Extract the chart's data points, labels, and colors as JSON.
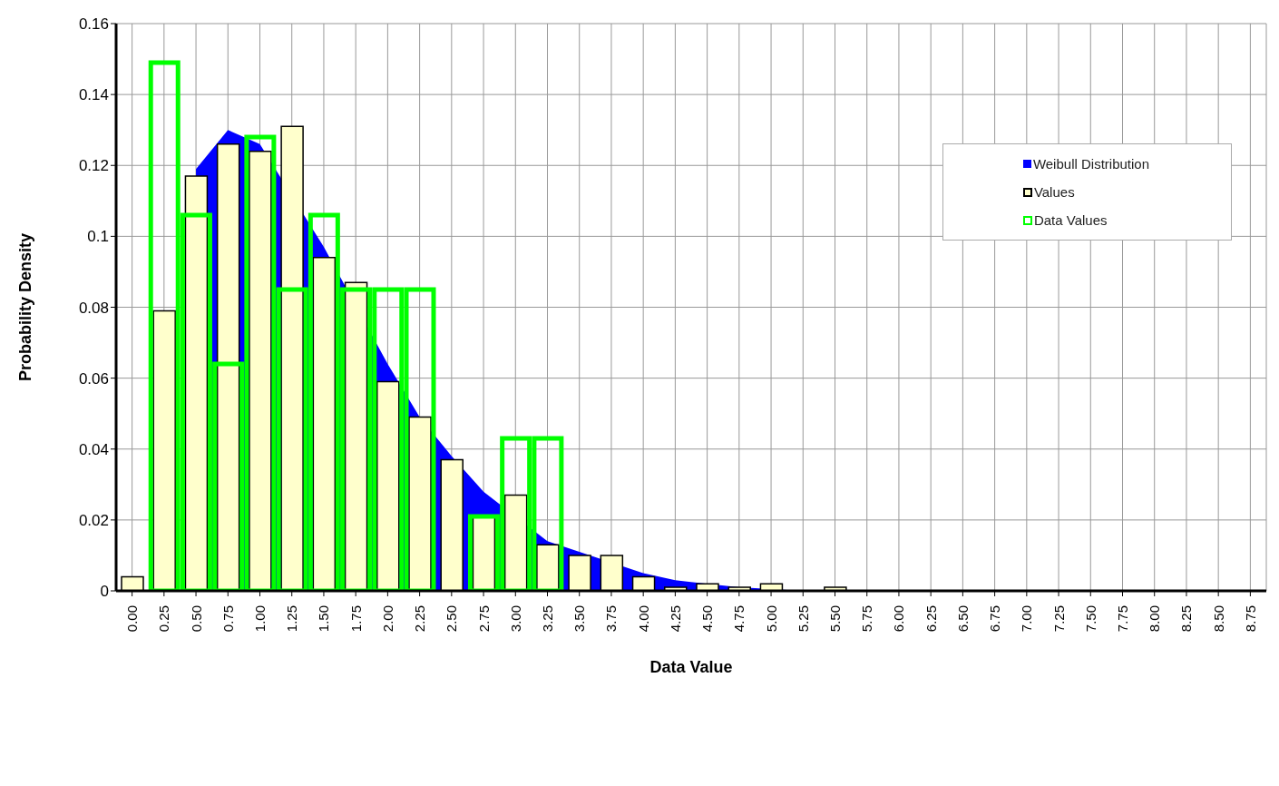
{
  "chart_data": {
    "type": "bar",
    "xlabel": "Data Value",
    "ylabel": "Probability Density",
    "categories": [
      "0.00",
      "0.25",
      "0.50",
      "0.75",
      "1.00",
      "1.25",
      "1.50",
      "1.75",
      "2.00",
      "2.25",
      "2.50",
      "2.75",
      "3.00",
      "3.25",
      "3.50",
      "3.75",
      "4.00",
      "4.25",
      "4.50",
      "4.75",
      "5.00",
      "5.25",
      "5.50",
      "5.75",
      "6.00",
      "6.25",
      "6.50",
      "6.75",
      "7.00",
      "7.25",
      "7.50",
      "7.75",
      "8.00",
      "8.25",
      "8.50",
      "8.75"
    ],
    "series": [
      {
        "name": "Weibull Distribution",
        "type": "area",
        "color": "#0000ff",
        "values": [
          null,
          null,
          0.119,
          0.13,
          0.126,
          null,
          0.097,
          null,
          0.064,
          0.049,
          0.038,
          0.028,
          null,
          0.014,
          0.011,
          null,
          0.005,
          0.003,
          0.002,
          0.001,
          null,
          0,
          0,
          0,
          0,
          0,
          0,
          0,
          0,
          0,
          0,
          0,
          0,
          0,
          0,
          0
        ]
      },
      {
        "name": "Values",
        "color": "#ffffcc",
        "values": [
          0.004,
          0.079,
          0.117,
          0.126,
          0.124,
          0.131,
          0.094,
          0.087,
          0.059,
          0.049,
          0.037,
          0.021,
          0.027,
          0.013,
          0.01,
          0.01,
          0.004,
          0.001,
          0.002,
          0.001,
          0.002,
          0,
          0.001,
          0,
          0,
          0,
          0,
          0,
          0,
          0,
          0,
          0,
          0,
          0,
          0,
          0
        ]
      },
      {
        "name": "Data Values",
        "color": "#00ff00",
        "values": [
          null,
          0.149,
          0.106,
          0.064,
          0.128,
          0.085,
          0.106,
          0.085,
          0.085,
          0.085,
          null,
          0.021,
          0.043,
          0.043,
          null,
          null,
          null,
          null,
          null,
          null,
          null,
          null,
          null,
          null,
          null,
          null,
          null,
          null,
          null,
          null,
          null,
          null,
          null,
          null,
          null,
          null
        ]
      }
    ],
    "ylim": [
      0,
      0.16
    ],
    "yticks": [
      0,
      0.02,
      0.04,
      0.06,
      0.08,
      {
        "value": 0.1,
        "label": "0.1"
      },
      0.12,
      0.14,
      0.16
    ],
    "grid": true,
    "legend": "top right"
  }
}
